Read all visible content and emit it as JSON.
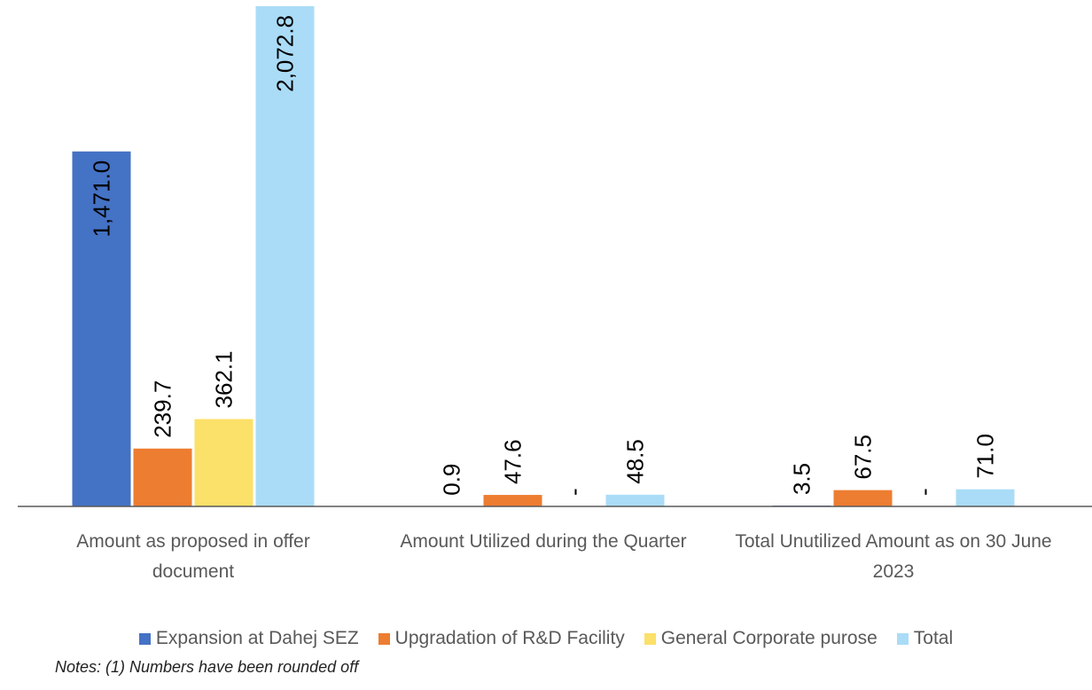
{
  "chart_data": {
    "type": "bar",
    "categories": [
      "Amount as proposed in offer document",
      "Amount Utilized during the Quarter",
      "Total Unutilized Amount as on 30 June 2023"
    ],
    "series": [
      {
        "name": "Expansion at Dahej SEZ",
        "color": "#4472c4",
        "values": [
          1471.0,
          0.9,
          3.5
        ],
        "value_labels": [
          "1,471.0",
          "0.9",
          "3.5"
        ]
      },
      {
        "name": "Upgradation of R&D Facility",
        "color": "#ed7d31",
        "values": [
          239.7,
          47.6,
          67.5
        ],
        "value_labels": [
          "239.7",
          "47.6",
          "67.5"
        ]
      },
      {
        "name": "General Corporate purose",
        "color": "#fbe06a",
        "values": [
          362.1,
          null,
          null
        ],
        "value_labels": [
          "362.1",
          "-",
          "-"
        ]
      },
      {
        "name": "Total",
        "color": "#aadcf7",
        "values": [
          2072.8,
          48.5,
          71.0
        ],
        "value_labels": [
          "2,072.8",
          "48.5",
          "71.0"
        ]
      }
    ],
    "legend": "bottom",
    "note": "Notes: (1) Numbers have been rounded off"
  }
}
